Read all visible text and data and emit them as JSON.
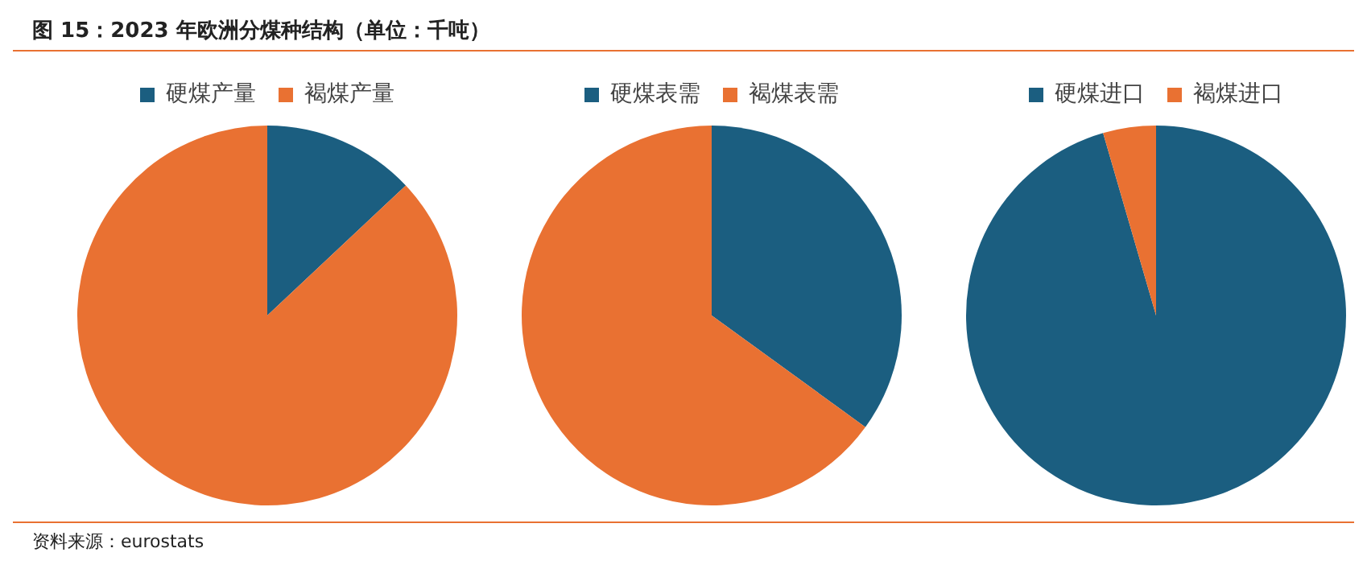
{
  "chart_data": [
    {
      "type": "pie",
      "title": "图 15：2023 年欧洲分煤种结构（单位：千吨）",
      "categories": [
        "硬煤产量",
        "褐煤产量"
      ],
      "values": [
        13,
        87
      ],
      "colors": [
        "#1b5e80",
        "#e97132"
      ],
      "legend": "top",
      "annotations": [
        "资料来源：eurostats"
      ]
    },
    {
      "type": "pie",
      "categories": [
        "硬煤表需",
        "褐煤表需"
      ],
      "values": [
        35,
        65
      ],
      "colors": [
        "#1b5e80",
        "#e97132"
      ],
      "legend": "top"
    },
    {
      "type": "pie",
      "categories": [
        "硬煤进口",
        "褐煤进口"
      ],
      "values": [
        95.5,
        4.5
      ],
      "colors": [
        "#1b5e80",
        "#e97132"
      ],
      "legend": "top"
    }
  ]
}
